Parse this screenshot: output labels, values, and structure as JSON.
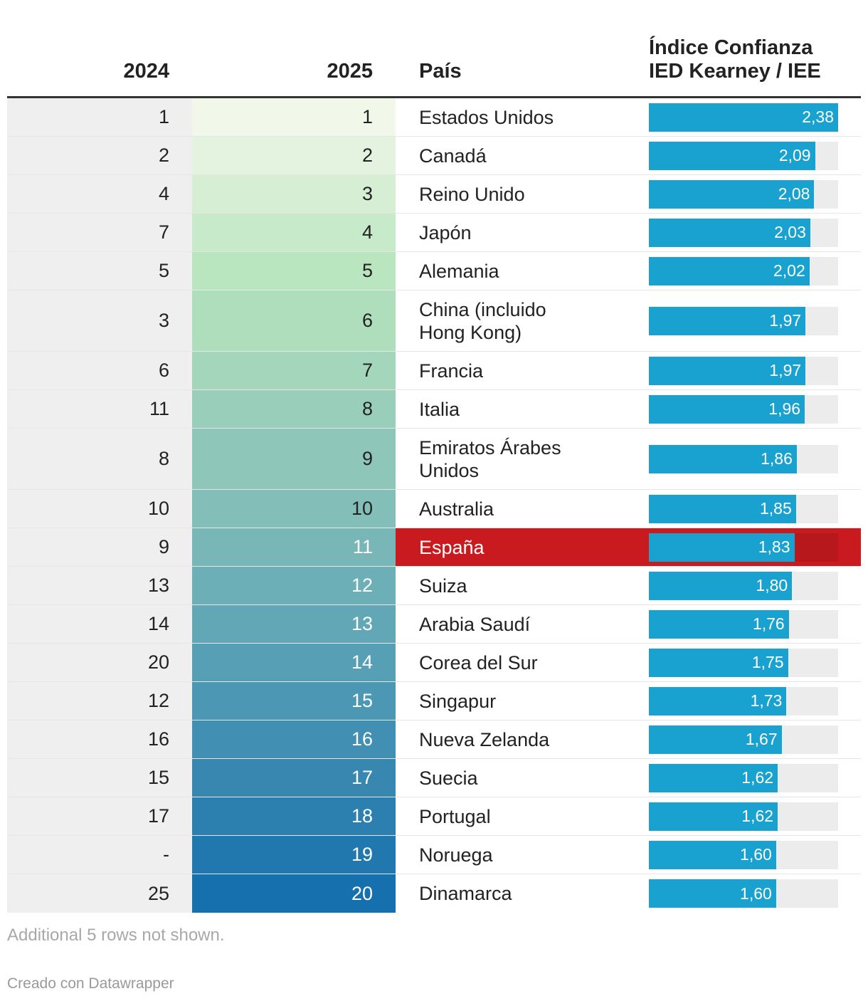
{
  "chart_data": {
    "type": "table",
    "columns": {
      "rank_2024": "2024",
      "rank_2025": "2025",
      "country": "País",
      "index_line1": "Índice Confianza",
      "index_line2": "IED Kearney / IEE"
    },
    "index_max": 2.38,
    "highlight_color": "#c91b1f",
    "bar_color": "#19a1d0",
    "gradient_start": "#f1f8ea",
    "gradient_end": "#1670ae",
    "rows": [
      {
        "rank_2024": "1",
        "rank_2025": "1",
        "country": "Estados Unidos",
        "index": 2.38,
        "index_label": "2,38"
      },
      {
        "rank_2024": "2",
        "rank_2025": "2",
        "country": "Canadá",
        "index": 2.09,
        "index_label": "2,09"
      },
      {
        "rank_2024": "4",
        "rank_2025": "3",
        "country": "Reino Unido",
        "index": 2.08,
        "index_label": "2,08"
      },
      {
        "rank_2024": "7",
        "rank_2025": "4",
        "country": "Japón",
        "index": 2.03,
        "index_label": "2,03"
      },
      {
        "rank_2024": "5",
        "rank_2025": "5",
        "country": "Alemania",
        "index": 2.02,
        "index_label": "2,02"
      },
      {
        "rank_2024": "3",
        "rank_2025": "6",
        "country": "China (incluido Hong Kong)",
        "index": 1.97,
        "index_label": "1,97",
        "tall": true
      },
      {
        "rank_2024": "6",
        "rank_2025": "7",
        "country": "Francia",
        "index": 1.97,
        "index_label": "1,97"
      },
      {
        "rank_2024": "11",
        "rank_2025": "8",
        "country": "Italia",
        "index": 1.96,
        "index_label": "1,96"
      },
      {
        "rank_2024": "8",
        "rank_2025": "9",
        "country": "Emiratos Árabes Unidos",
        "index": 1.86,
        "index_label": "1,86",
        "tall": true
      },
      {
        "rank_2024": "10",
        "rank_2025": "10",
        "country": "Australia",
        "index": 1.85,
        "index_label": "1,85"
      },
      {
        "rank_2024": "9",
        "rank_2025": "11",
        "country": "España",
        "index": 1.83,
        "index_label": "1,83",
        "highlight": true
      },
      {
        "rank_2024": "13",
        "rank_2025": "12",
        "country": "Suiza",
        "index": 1.8,
        "index_label": "1,80"
      },
      {
        "rank_2024": "14",
        "rank_2025": "13",
        "country": "Arabia Saudí",
        "index": 1.76,
        "index_label": "1,76"
      },
      {
        "rank_2024": "20",
        "rank_2025": "14",
        "country": "Corea del Sur",
        "index": 1.75,
        "index_label": "1,75"
      },
      {
        "rank_2024": "12",
        "rank_2025": "15",
        "country": "Singapur",
        "index": 1.73,
        "index_label": "1,73"
      },
      {
        "rank_2024": "16",
        "rank_2025": "16",
        "country": "Nueva Zelanda",
        "index": 1.67,
        "index_label": "1,67"
      },
      {
        "rank_2024": "15",
        "rank_2025": "17",
        "country": "Suecia",
        "index": 1.62,
        "index_label": "1,62"
      },
      {
        "rank_2024": "17",
        "rank_2025": "18",
        "country": "Portugal",
        "index": 1.62,
        "index_label": "1,62"
      },
      {
        "rank_2024": "-",
        "rank_2025": "19",
        "country": "Noruega",
        "index": 1.6,
        "index_label": "1,60"
      },
      {
        "rank_2024": "25",
        "rank_2025": "20",
        "country": "Dinamarca",
        "index": 1.6,
        "index_label": "1,60"
      }
    ]
  },
  "footnote": "Additional 5 rows not shown.",
  "credit": "Creado con Datawrapper"
}
